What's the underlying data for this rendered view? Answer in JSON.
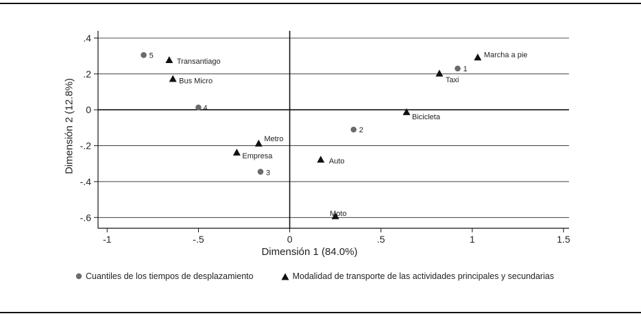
{
  "chart_data": {
    "type": "scatter",
    "xlabel": "Dimensión 1 (84.0%)",
    "ylabel": "Dimensión 2 (12.8%)",
    "xlim": [
      -1.05,
      1.53
    ],
    "ylim": [
      -0.66,
      0.44
    ],
    "x_ticks": [
      -1,
      -0.5,
      0,
      0.5,
      1,
      1.5
    ],
    "x_tick_labels": [
      "-1",
      "-.5",
      "0",
      ".5",
      "1",
      "1.5"
    ],
    "y_ticks": [
      -0.6,
      -0.4,
      -0.2,
      0,
      0.2,
      0.4
    ],
    "y_tick_labels": [
      "-.6",
      "-.4",
      "-.2",
      "0",
      ".2",
      ".4"
    ],
    "grid": "horizontal",
    "reference_lines": {
      "x": 0,
      "y": 0
    },
    "legend_position": "bottom",
    "series": [
      {
        "name": "Cuantiles de los tiempos de desplazamiento",
        "marker": "circle",
        "color": "#6b6b6b",
        "points": [
          {
            "label": "5",
            "x": -0.8,
            "y": 0.305
          },
          {
            "label": "4",
            "x": -0.5,
            "y": 0.013
          },
          {
            "label": "3",
            "x": -0.16,
            "y": -0.345
          },
          {
            "label": "2",
            "x": 0.35,
            "y": -0.11
          },
          {
            "label": "1",
            "x": 0.92,
            "y": 0.23
          }
        ]
      },
      {
        "name": "Modalidad de transporte de las actividades principales y secundarias",
        "marker": "triangle",
        "color": "#111111",
        "points": [
          {
            "label": "Transantiago",
            "x": -0.66,
            "y": 0.275
          },
          {
            "label": "Bus Micro",
            "x": -0.64,
            "y": 0.17
          },
          {
            "label": "Metro",
            "x": -0.17,
            "y": -0.19
          },
          {
            "label": "Empresa",
            "x": -0.29,
            "y": -0.24
          },
          {
            "label": "Auto",
            "x": 0.17,
            "y": -0.28
          },
          {
            "label": "Moto",
            "x": 0.25,
            "y": -0.595
          },
          {
            "label": "Bicicleta",
            "x": 0.64,
            "y": -0.015
          },
          {
            "label": "Taxi",
            "x": 0.82,
            "y": 0.2
          },
          {
            "label": "Marcha a pie",
            "x": 1.03,
            "y": 0.29
          }
        ]
      }
    ]
  }
}
